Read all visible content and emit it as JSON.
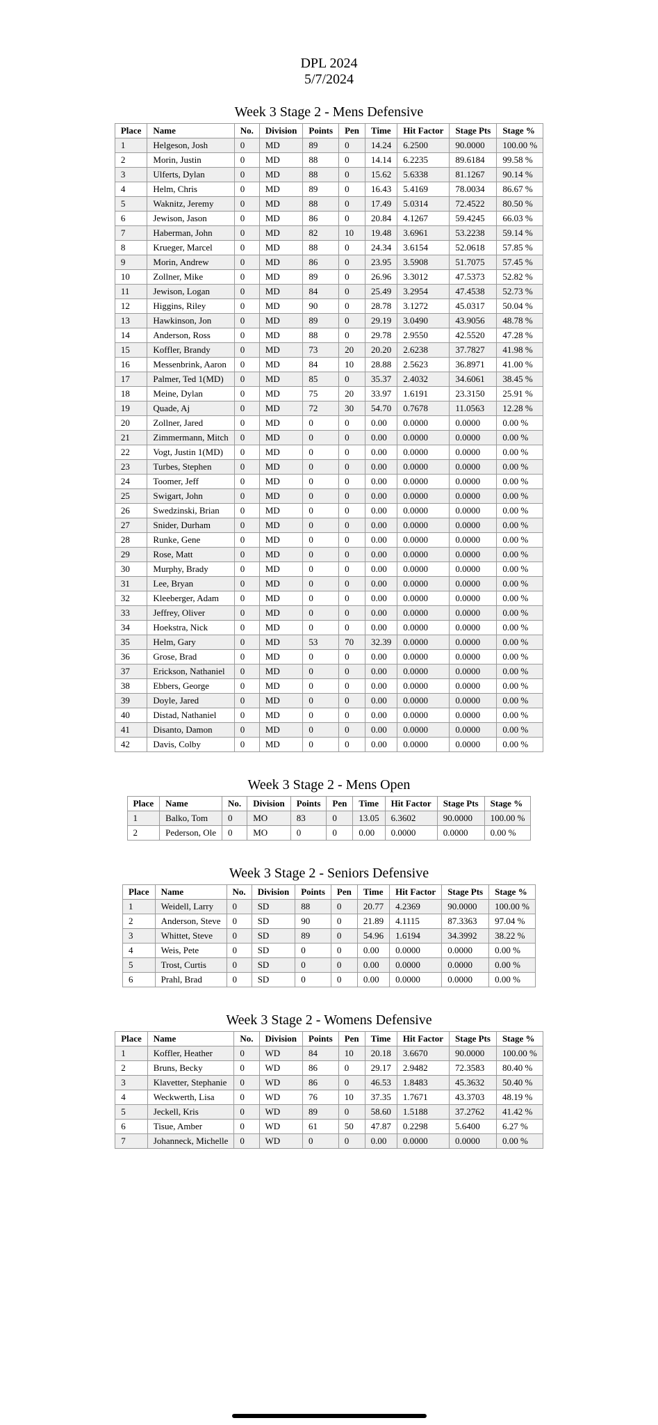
{
  "header": {
    "title": "DPL 2024",
    "date": "5/7/2024"
  },
  "columns": [
    "Place",
    "Name",
    "No.",
    "Division",
    "Points",
    "Pen",
    "Time",
    "Hit Factor",
    "Stage Pts",
    "Stage %"
  ],
  "tables": [
    {
      "title": "Week 3 Stage 2 - Mens Defensive",
      "rows": [
        [
          "1",
          "Helgeson, Josh",
          "0",
          "MD",
          "89",
          "0",
          "14.24",
          "6.2500",
          "90.0000",
          "100.00 %"
        ],
        [
          "2",
          "Morin, Justin",
          "0",
          "MD",
          "88",
          "0",
          "14.14",
          "6.2235",
          "89.6184",
          "99.58 %"
        ],
        [
          "3",
          "Ulferts, Dylan",
          "0",
          "MD",
          "88",
          "0",
          "15.62",
          "5.6338",
          "81.1267",
          "90.14 %"
        ],
        [
          "4",
          "Helm, Chris",
          "0",
          "MD",
          "89",
          "0",
          "16.43",
          "5.4169",
          "78.0034",
          "86.67 %"
        ],
        [
          "5",
          "Waknitz, Jeremy",
          "0",
          "MD",
          "88",
          "0",
          "17.49",
          "5.0314",
          "72.4522",
          "80.50 %"
        ],
        [
          "6",
          "Jewison, Jason",
          "0",
          "MD",
          "86",
          "0",
          "20.84",
          "4.1267",
          "59.4245",
          "66.03 %"
        ],
        [
          "7",
          "Haberman, John",
          "0",
          "MD",
          "82",
          "10",
          "19.48",
          "3.6961",
          "53.2238",
          "59.14 %"
        ],
        [
          "8",
          "Krueger, Marcel",
          "0",
          "MD",
          "88",
          "0",
          "24.34",
          "3.6154",
          "52.0618",
          "57.85 %"
        ],
        [
          "9",
          "Morin, Andrew",
          "0",
          "MD",
          "86",
          "0",
          "23.95",
          "3.5908",
          "51.7075",
          "57.45 %"
        ],
        [
          "10",
          "Zollner, Mike",
          "0",
          "MD",
          "89",
          "0",
          "26.96",
          "3.3012",
          "47.5373",
          "52.82 %"
        ],
        [
          "11",
          "Jewison, Logan",
          "0",
          "MD",
          "84",
          "0",
          "25.49",
          "3.2954",
          "47.4538",
          "52.73 %"
        ],
        [
          "12",
          "Higgins, Riley",
          "0",
          "MD",
          "90",
          "0",
          "28.78",
          "3.1272",
          "45.0317",
          "50.04 %"
        ],
        [
          "13",
          "Hawkinson, Jon",
          "0",
          "MD",
          "89",
          "0",
          "29.19",
          "3.0490",
          "43.9056",
          "48.78 %"
        ],
        [
          "14",
          "Anderson, Ross",
          "0",
          "MD",
          "88",
          "0",
          "29.78",
          "2.9550",
          "42.5520",
          "47.28 %"
        ],
        [
          "15",
          "Koffler, Brandy",
          "0",
          "MD",
          "73",
          "20",
          "20.20",
          "2.6238",
          "37.7827",
          "41.98 %"
        ],
        [
          "16",
          "Messenbrink, Aaron",
          "0",
          "MD",
          "84",
          "10",
          "28.88",
          "2.5623",
          "36.8971",
          "41.00 %"
        ],
        [
          "17",
          "Palmer, Ted 1(MD)",
          "0",
          "MD",
          "85",
          "0",
          "35.37",
          "2.4032",
          "34.6061",
          "38.45 %"
        ],
        [
          "18",
          "Meine, Dylan",
          "0",
          "MD",
          "75",
          "20",
          "33.97",
          "1.6191",
          "23.3150",
          "25.91 %"
        ],
        [
          "19",
          "Quade, Aj",
          "0",
          "MD",
          "72",
          "30",
          "54.70",
          "0.7678",
          "11.0563",
          "12.28 %"
        ],
        [
          "20",
          "Zollner, Jared",
          "0",
          "MD",
          "0",
          "0",
          "0.00",
          "0.0000",
          "0.0000",
          "0.00 %"
        ],
        [
          "21",
          "Zimmermann, Mitch",
          "0",
          "MD",
          "0",
          "0",
          "0.00",
          "0.0000",
          "0.0000",
          "0.00 %"
        ],
        [
          "22",
          "Vogt, Justin 1(MD)",
          "0",
          "MD",
          "0",
          "0",
          "0.00",
          "0.0000",
          "0.0000",
          "0.00 %"
        ],
        [
          "23",
          "Turbes, Stephen",
          "0",
          "MD",
          "0",
          "0",
          "0.00",
          "0.0000",
          "0.0000",
          "0.00 %"
        ],
        [
          "24",
          "Toomer, Jeff",
          "0",
          "MD",
          "0",
          "0",
          "0.00",
          "0.0000",
          "0.0000",
          "0.00 %"
        ],
        [
          "25",
          "Swigart, John",
          "0",
          "MD",
          "0",
          "0",
          "0.00",
          "0.0000",
          "0.0000",
          "0.00 %"
        ],
        [
          "26",
          "Swedzinski, Brian",
          "0",
          "MD",
          "0",
          "0",
          "0.00",
          "0.0000",
          "0.0000",
          "0.00 %"
        ],
        [
          "27",
          "Snider, Durham",
          "0",
          "MD",
          "0",
          "0",
          "0.00",
          "0.0000",
          "0.0000",
          "0.00 %"
        ],
        [
          "28",
          "Runke, Gene",
          "0",
          "MD",
          "0",
          "0",
          "0.00",
          "0.0000",
          "0.0000",
          "0.00 %"
        ],
        [
          "29",
          "Rose, Matt",
          "0",
          "MD",
          "0",
          "0",
          "0.00",
          "0.0000",
          "0.0000",
          "0.00 %"
        ],
        [
          "30",
          "Murphy, Brady",
          "0",
          "MD",
          "0",
          "0",
          "0.00",
          "0.0000",
          "0.0000",
          "0.00 %"
        ],
        [
          "31",
          "Lee, Bryan",
          "0",
          "MD",
          "0",
          "0",
          "0.00",
          "0.0000",
          "0.0000",
          "0.00 %"
        ],
        [
          "32",
          "Kleeberger, Adam",
          "0",
          "MD",
          "0",
          "0",
          "0.00",
          "0.0000",
          "0.0000",
          "0.00 %"
        ],
        [
          "33",
          "Jeffrey, Oliver",
          "0",
          "MD",
          "0",
          "0",
          "0.00",
          "0.0000",
          "0.0000",
          "0.00 %"
        ],
        [
          "34",
          "Hoekstra, Nick",
          "0",
          "MD",
          "0",
          "0",
          "0.00",
          "0.0000",
          "0.0000",
          "0.00 %"
        ],
        [
          "35",
          "Helm, Gary",
          "0",
          "MD",
          "53",
          "70",
          "32.39",
          "0.0000",
          "0.0000",
          "0.00 %"
        ],
        [
          "36",
          "Grose, Brad",
          "0",
          "MD",
          "0",
          "0",
          "0.00",
          "0.0000",
          "0.0000",
          "0.00 %"
        ],
        [
          "37",
          "Erickson, Nathaniel",
          "0",
          "MD",
          "0",
          "0",
          "0.00",
          "0.0000",
          "0.0000",
          "0.00 %"
        ],
        [
          "38",
          "Ebbers, George",
          "0",
          "MD",
          "0",
          "0",
          "0.00",
          "0.0000",
          "0.0000",
          "0.00 %"
        ],
        [
          "39",
          "Doyle, Jared",
          "0",
          "MD",
          "0",
          "0",
          "0.00",
          "0.0000",
          "0.0000",
          "0.00 %"
        ],
        [
          "40",
          "Distad, Nathaniel",
          "0",
          "MD",
          "0",
          "0",
          "0.00",
          "0.0000",
          "0.0000",
          "0.00 %"
        ],
        [
          "41",
          "Disanto, Damon",
          "0",
          "MD",
          "0",
          "0",
          "0.00",
          "0.0000",
          "0.0000",
          "0.00 %"
        ],
        [
          "42",
          "Davis, Colby",
          "0",
          "MD",
          "0",
          "0",
          "0.00",
          "0.0000",
          "0.0000",
          "0.00 %"
        ]
      ]
    },
    {
      "title": "Week 3 Stage 2 - Mens Open",
      "rows": [
        [
          "1",
          "Balko, Tom",
          "0",
          "MO",
          "83",
          "0",
          "13.05",
          "6.3602",
          "90.0000",
          "100.00 %"
        ],
        [
          "2",
          "Pederson, Ole",
          "0",
          "MO",
          "0",
          "0",
          "0.00",
          "0.0000",
          "0.0000",
          "0.00 %"
        ]
      ]
    },
    {
      "title": "Week 3 Stage 2 - Seniors Defensive",
      "rows": [
        [
          "1",
          "Weidell, Larry",
          "0",
          "SD",
          "88",
          "0",
          "20.77",
          "4.2369",
          "90.0000",
          "100.00 %"
        ],
        [
          "2",
          "Anderson, Steve",
          "0",
          "SD",
          "90",
          "0",
          "21.89",
          "4.1115",
          "87.3363",
          "97.04 %"
        ],
        [
          "3",
          "Whittet, Steve",
          "0",
          "SD",
          "89",
          "0",
          "54.96",
          "1.6194",
          "34.3992",
          "38.22 %"
        ],
        [
          "4",
          "Weis, Pete",
          "0",
          "SD",
          "0",
          "0",
          "0.00",
          "0.0000",
          "0.0000",
          "0.00 %"
        ],
        [
          "5",
          "Trost, Curtis",
          "0",
          "SD",
          "0",
          "0",
          "0.00",
          "0.0000",
          "0.0000",
          "0.00 %"
        ],
        [
          "6",
          "Prahl, Brad",
          "0",
          "SD",
          "0",
          "0",
          "0.00",
          "0.0000",
          "0.0000",
          "0.00 %"
        ]
      ]
    },
    {
      "title": "Week 3 Stage 2 - Womens Defensive",
      "rows": [
        [
          "1",
          "Koffler, Heather",
          "0",
          "WD",
          "84",
          "10",
          "20.18",
          "3.6670",
          "90.0000",
          "100.00 %"
        ],
        [
          "2",
          "Bruns, Becky",
          "0",
          "WD",
          "86",
          "0",
          "29.17",
          "2.9482",
          "72.3583",
          "80.40 %"
        ],
        [
          "3",
          "Klavetter, Stephanie",
          "0",
          "WD",
          "86",
          "0",
          "46.53",
          "1.8483",
          "45.3632",
          "50.40 %"
        ],
        [
          "4",
          "Weckwerth, Lisa",
          "0",
          "WD",
          "76",
          "10",
          "37.35",
          "1.7671",
          "43.3703",
          "48.19 %"
        ],
        [
          "5",
          "Jeckell, Kris",
          "0",
          "WD",
          "89",
          "0",
          "58.60",
          "1.5188",
          "37.2762",
          "41.42 %"
        ],
        [
          "6",
          "Tisue, Amber",
          "0",
          "WD",
          "61",
          "50",
          "47.87",
          "0.2298",
          "5.6400",
          "6.27 %"
        ],
        [
          "7",
          "Johanneck, Michelle",
          "0",
          "WD",
          "0",
          "0",
          "0.00",
          "0.0000",
          "0.0000",
          "0.00 %"
        ]
      ]
    }
  ]
}
